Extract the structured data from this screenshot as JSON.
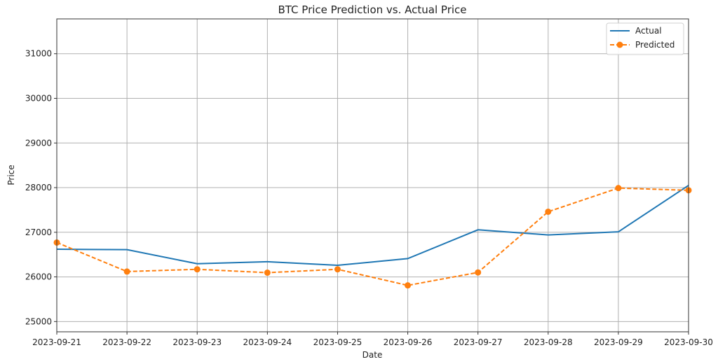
{
  "chart_data": {
    "type": "line",
    "title": "BTC Price Prediction vs. Actual Price",
    "xlabel": "Date",
    "ylabel": "Price",
    "categories": [
      "2023-09-21",
      "2023-09-22",
      "2023-09-23",
      "2023-09-24",
      "2023-09-25",
      "2023-09-26",
      "2023-09-27",
      "2023-09-28",
      "2023-09-29",
      "2023-09-30"
    ],
    "ylim": [
      24770,
      31780
    ],
    "yticks": [
      25000,
      26000,
      27000,
      28000,
      29000,
      30000,
      31000
    ],
    "grid": true,
    "legend_position": "top-right",
    "series": [
      {
        "name": "Actual",
        "color": "#1f77b4",
        "style": "solid",
        "marker": "none",
        "values": [
          26620,
          26610,
          26295,
          26340,
          26260,
          26410,
          27055,
          26940,
          27010,
          28050
        ]
      },
      {
        "name": "Predicted",
        "color": "#ff7f0e",
        "style": "dashed",
        "marker": "circle",
        "values": [
          26770,
          26120,
          26170,
          26095,
          26170,
          25810,
          26100,
          27460,
          27990,
          27940
        ]
      }
    ]
  }
}
